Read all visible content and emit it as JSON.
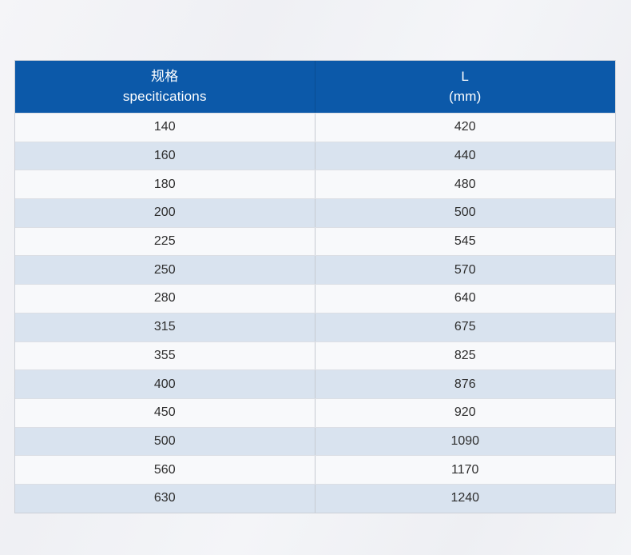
{
  "table": {
    "header": {
      "spec": {
        "line1": "规格",
        "line2": "specitications"
      },
      "length": {
        "line1": "L",
        "line2": "(mm)"
      }
    },
    "rows": [
      {
        "spec": "140",
        "l": "420"
      },
      {
        "spec": "160",
        "l": "440"
      },
      {
        "spec": "180",
        "l": "480"
      },
      {
        "spec": "200",
        "l": "500"
      },
      {
        "spec": "225",
        "l": "545"
      },
      {
        "spec": "250",
        "l": "570"
      },
      {
        "spec": "280",
        "l": "640"
      },
      {
        "spec": "315",
        "l": "675"
      },
      {
        "spec": "355",
        "l": "825"
      },
      {
        "spec": "400",
        "l": "876"
      },
      {
        "spec": "450",
        "l": "920"
      },
      {
        "spec": "500",
        "l": "1090"
      },
      {
        "spec": "560",
        "l": "1170"
      },
      {
        "spec": "630",
        "l": "1240"
      }
    ]
  },
  "colors": {
    "header_bg": "#0c59a9",
    "header_text": "#ffffff",
    "row_bg": "#f8f9fb",
    "row_alt_bg": "#d9e3ef",
    "cell_text": "#2d2d2d"
  },
  "chart_data": {
    "type": "table",
    "columns": [
      "规格 specitications",
      "L (mm)"
    ],
    "specifications": [
      140,
      160,
      180,
      200,
      225,
      250,
      280,
      315,
      355,
      400,
      450,
      500,
      560,
      630
    ],
    "L_mm": [
      420,
      440,
      480,
      500,
      545,
      570,
      640,
      675,
      825,
      876,
      920,
      1090,
      1170,
      1240
    ]
  }
}
